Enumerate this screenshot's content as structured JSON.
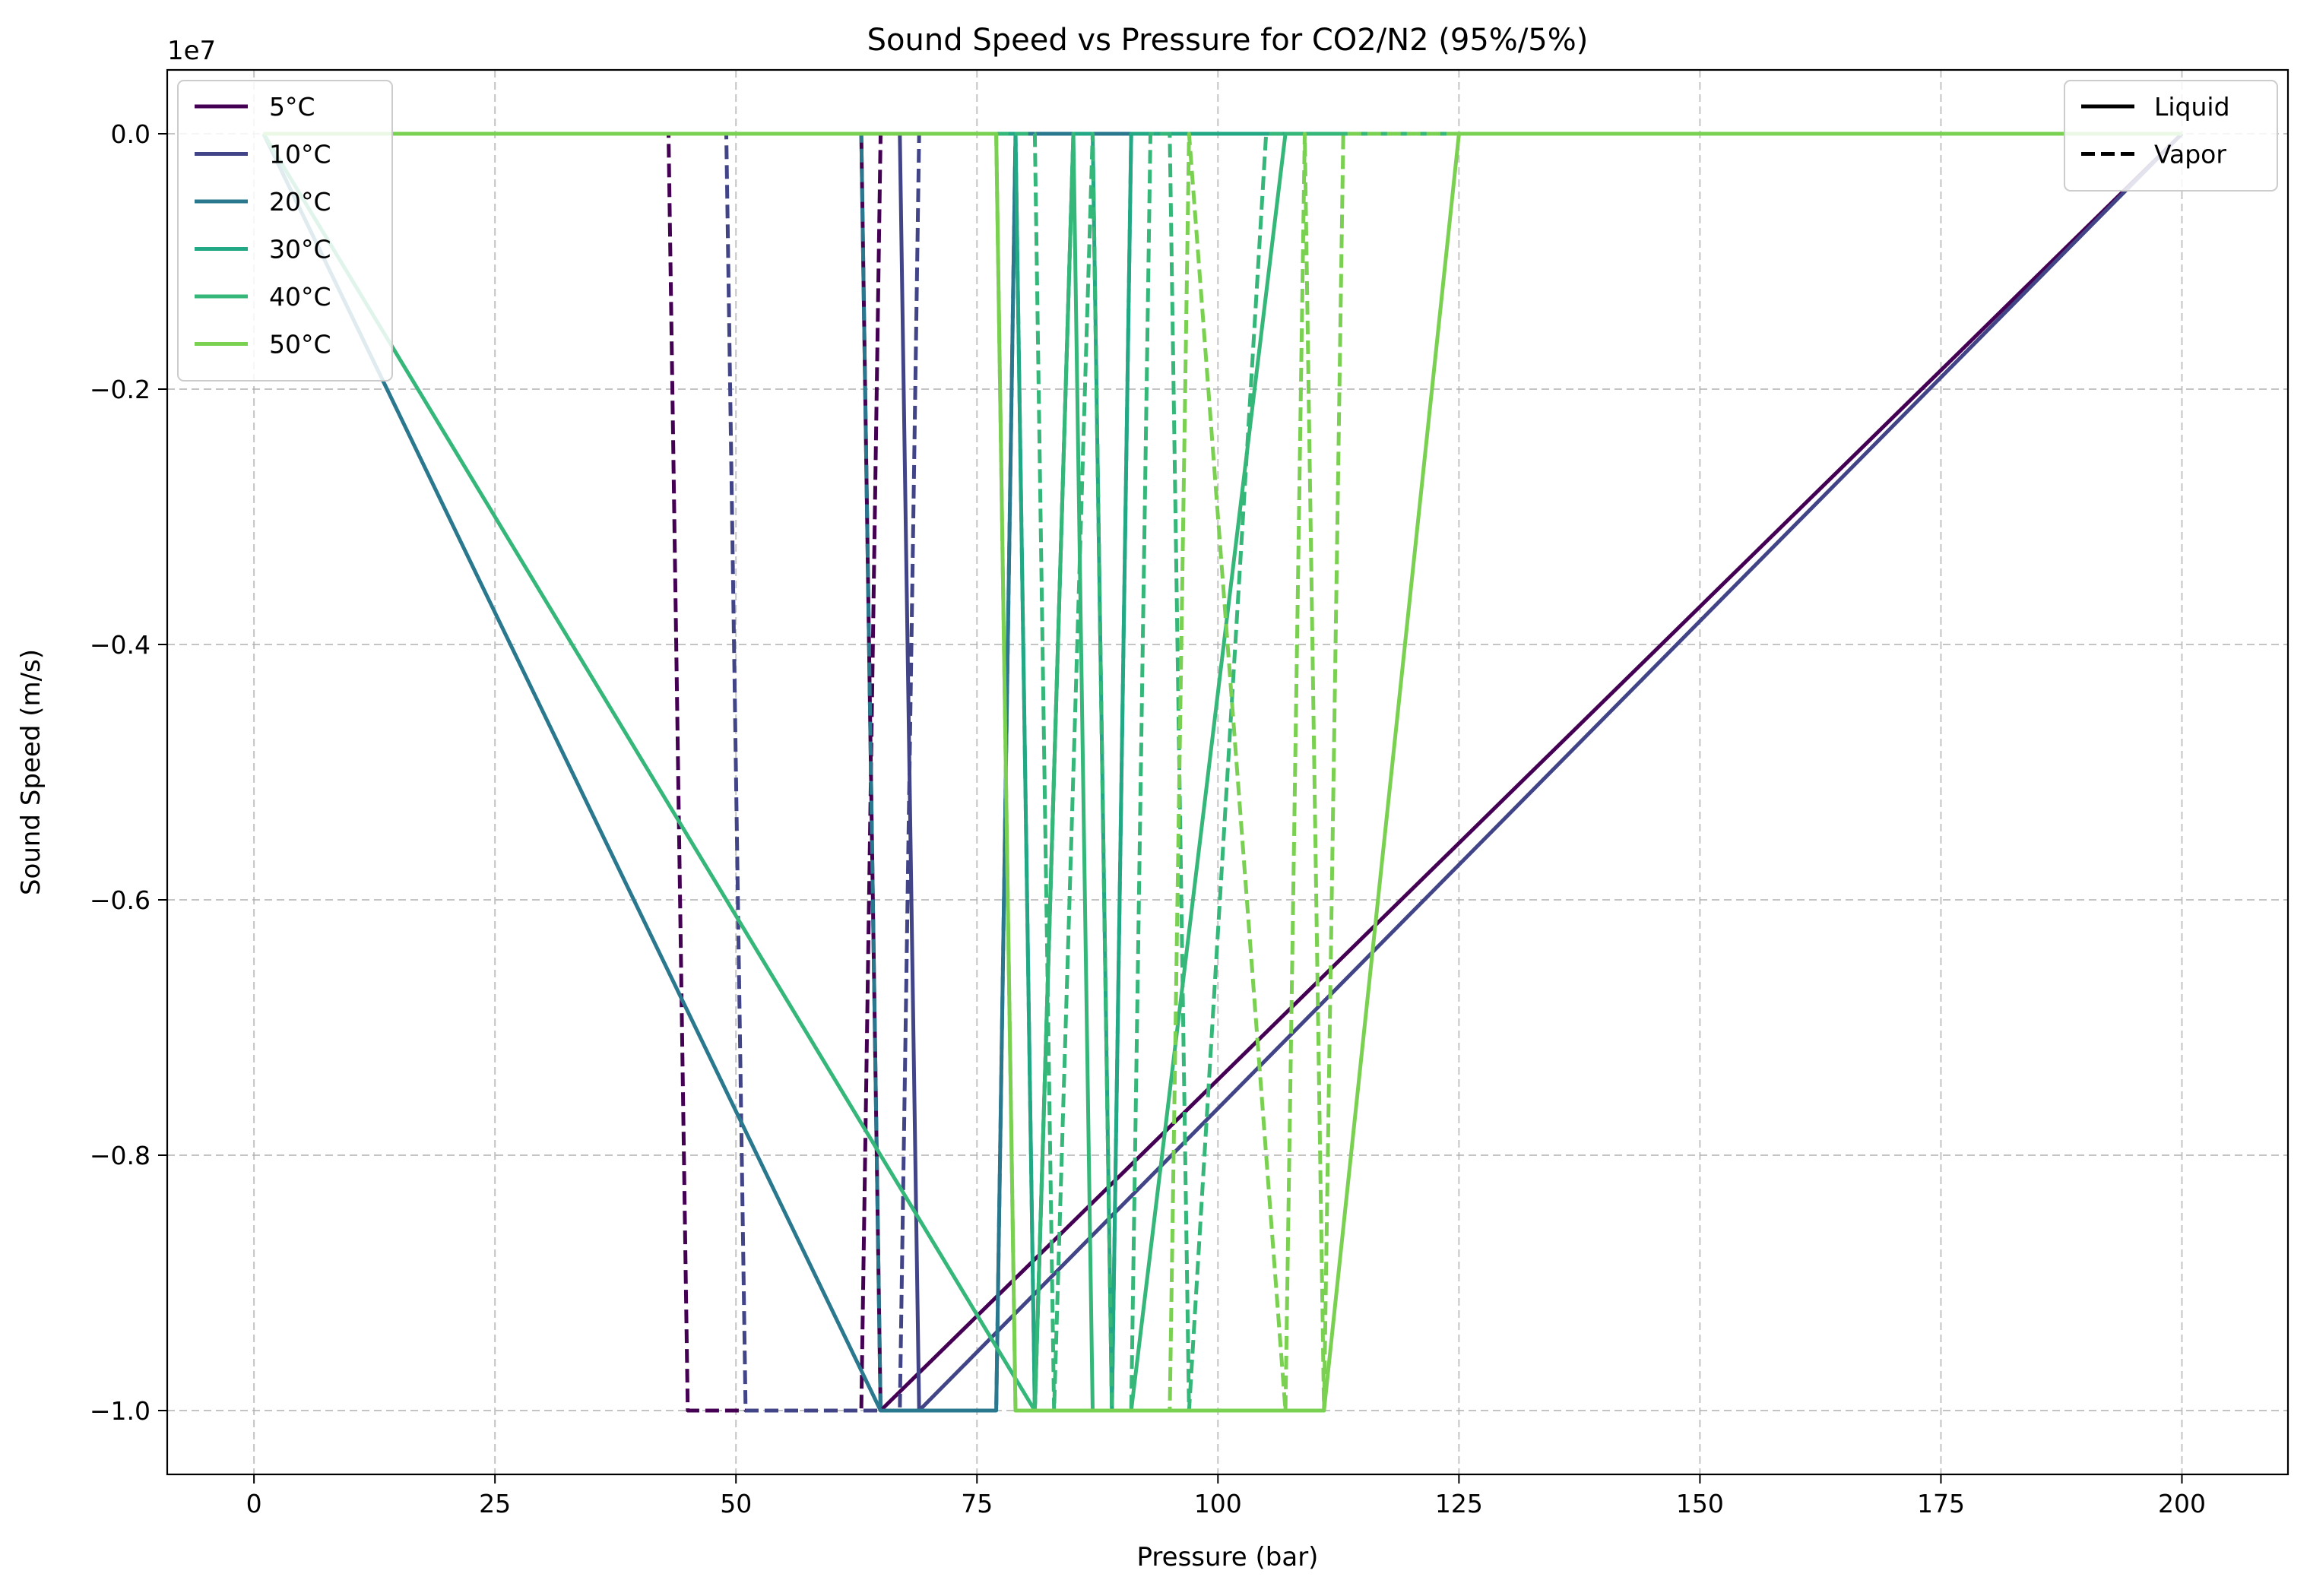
{
  "chart_data": {
    "type": "line",
    "title": "Sound Speed vs Pressure for CO2/N2 (95%/5%)",
    "xlabel": "Pressure (bar)",
    "ylabel": "Sound Speed (m/s)",
    "y_offset_text": "1e7",
    "xlim": [
      -9,
      211
    ],
    "ylim": [
      -10500000,
      500000
    ],
    "x_ticks": [
      0,
      25,
      50,
      75,
      100,
      125,
      150,
      175,
      200
    ],
    "x_tick_labels": [
      "0",
      "25",
      "50",
      "75",
      "100",
      "125",
      "150",
      "175",
      "200"
    ],
    "y_ticks": [
      0,
      -2000000,
      -4000000,
      -6000000,
      -8000000,
      -10000000
    ],
    "y_tick_labels": [
      "0.0",
      "−0.2",
      "−0.4",
      "−0.6",
      "−0.8",
      "−1.0"
    ],
    "grid": true,
    "legend_placement": "top-left",
    "style_legend_placement": "top-right",
    "style_legend": [
      {
        "label": "Liquid",
        "dash": "solid"
      },
      {
        "label": "Vapor",
        "dash": "dashed"
      }
    ],
    "series": [
      {
        "name": "5°C",
        "color": "#440154",
        "liquid": {
          "x": [
            1,
            63,
            65,
            200
          ],
          "y": [
            0,
            0,
            -10000000,
            0
          ]
        },
        "vapor": {
          "x": [
            1,
            43,
            45,
            63,
            65,
            200
          ],
          "y": [
            0,
            0,
            -10000000,
            -10000000,
            0,
            0
          ]
        }
      },
      {
        "name": "10°C",
        "color": "#414487",
        "liquid": {
          "x": [
            1,
            67,
            69,
            200
          ],
          "y": [
            0,
            0,
            -10000000,
            0
          ]
        },
        "vapor": {
          "x": [
            1,
            49,
            51,
            67,
            69,
            200
          ],
          "y": [
            0,
            0,
            -10000000,
            -10000000,
            0,
            0
          ]
        }
      },
      {
        "name": "20°C",
        "color": "#2a788e",
        "liquid": {
          "x": [
            1,
            65,
            77,
            79,
            200
          ],
          "y": [
            0,
            -10000000,
            -10000000,
            0,
            0
          ]
        },
        "vapor": {
          "x": [
            1,
            63,
            65,
            77,
            79,
            200
          ],
          "y": [
            0,
            0,
            -10000000,
            -10000000,
            0,
            0
          ]
        }
      },
      {
        "name": "30°C",
        "color": "#22a884",
        "liquid": {
          "x": [
            1,
            79,
            81,
            85,
            87,
            89,
            91,
            200
          ],
          "y": [
            0,
            0,
            -10000000,
            0,
            0,
            -10000000,
            0,
            0
          ]
        },
        "vapor": {
          "x": [
            1,
            79,
            81,
            85,
            87,
            89,
            91,
            200
          ],
          "y": [
            0,
            0,
            -10000000,
            0,
            0,
            -10000000,
            0,
            0
          ]
        }
      },
      {
        "name": "40°C",
        "color": "#35b779",
        "liquid": {
          "x": [
            1,
            81,
            85,
            87,
            91,
            107,
            200
          ],
          "y": [
            0,
            -10000000,
            0,
            -10000000,
            -10000000,
            0,
            0
          ]
        },
        "vapor": {
          "x": [
            1,
            81,
            83,
            87,
            89,
            91,
            93,
            95,
            97,
            105,
            107,
            200
          ],
          "y": [
            0,
            0,
            -10000000,
            0,
            -10000000,
            -10000000,
            0,
            0,
            -10000000,
            0,
            0,
            0
          ]
        }
      },
      {
        "name": "50°C",
        "color": "#7ad151",
        "liquid": {
          "x": [
            1,
            77,
            79,
            111,
            125,
            200
          ],
          "y": [
            0,
            0,
            -10000000,
            -10000000,
            0,
            0
          ]
        },
        "vapor": {
          "x": [
            1,
            77,
            79,
            95,
            97,
            107,
            109,
            111,
            113,
            200
          ],
          "y": [
            0,
            0,
            -10000000,
            -10000000,
            0,
            -10000000,
            0,
            -10000000,
            0,
            0
          ]
        }
      }
    ]
  }
}
